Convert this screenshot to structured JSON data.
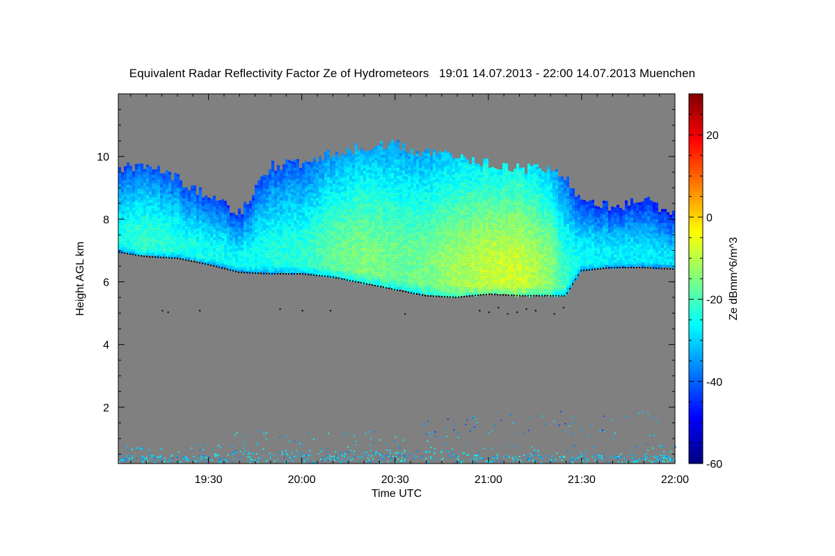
{
  "chart_data": {
    "type": "heatmap",
    "title": "Equivalent Radar Reflectivity Factor Ze of Hydrometeors   19:01 14.07.2013 - 22:00 14.07.2013 Muenchen",
    "xlabel": "Time UTC",
    "ylabel": "Height AGL km",
    "colorbar_label": "Ze dBmm^6/m^3",
    "x_range": [
      "19:01",
      "22:00"
    ],
    "x_ticks": [
      "19:30",
      "20:00",
      "20:30",
      "21:00",
      "21:30",
      "22:00"
    ],
    "y_range": [
      0.2,
      12
    ],
    "y_ticks": [
      2,
      4,
      6,
      8,
      10
    ],
    "colorbar_range": [
      -60,
      30
    ],
    "colorbar_ticks": [
      -60,
      -40,
      -20,
      0,
      20
    ],
    "background_color": "#808080",
    "colormap": [
      "#00007f",
      "#0000ff",
      "#007fff",
      "#00ffff",
      "#7fff7f",
      "#ffff00",
      "#ff7f00",
      "#ff0000",
      "#7f0000"
    ],
    "cloud_layer": {
      "time": [
        "19:01",
        "19:10",
        "19:20",
        "19:30",
        "19:40",
        "19:50",
        "20:00",
        "20:10",
        "20:20",
        "20:30",
        "20:40",
        "20:50",
        "21:00",
        "21:10",
        "21:20",
        "21:25",
        "21:30",
        "21:40",
        "21:50",
        "22:00"
      ],
      "top_km": [
        9.6,
        9.7,
        9.3,
        8.7,
        8.2,
        9.7,
        9.8,
        10.1,
        10.3,
        10.4,
        10.1,
        10.0,
        9.8,
        9.6,
        9.6,
        9.4,
        8.5,
        8.4,
        8.6,
        8.2
      ],
      "base_km": [
        7.0,
        6.85,
        6.8,
        6.6,
        6.35,
        6.3,
        6.3,
        6.2,
        6.0,
        5.8,
        5.6,
        5.55,
        5.65,
        5.6,
        5.6,
        5.6,
        6.4,
        6.5,
        6.5,
        6.45
      ],
      "peak_ze_dbz": [
        -25,
        -22,
        -24,
        -25,
        -26,
        -24,
        -23,
        -18,
        -15,
        -17,
        -16,
        -12,
        -9,
        -8,
        -14,
        -22,
        -26,
        -27,
        -28,
        -29
      ]
    },
    "ground_clutter_km": [
      0.2,
      1.2
    ]
  }
}
